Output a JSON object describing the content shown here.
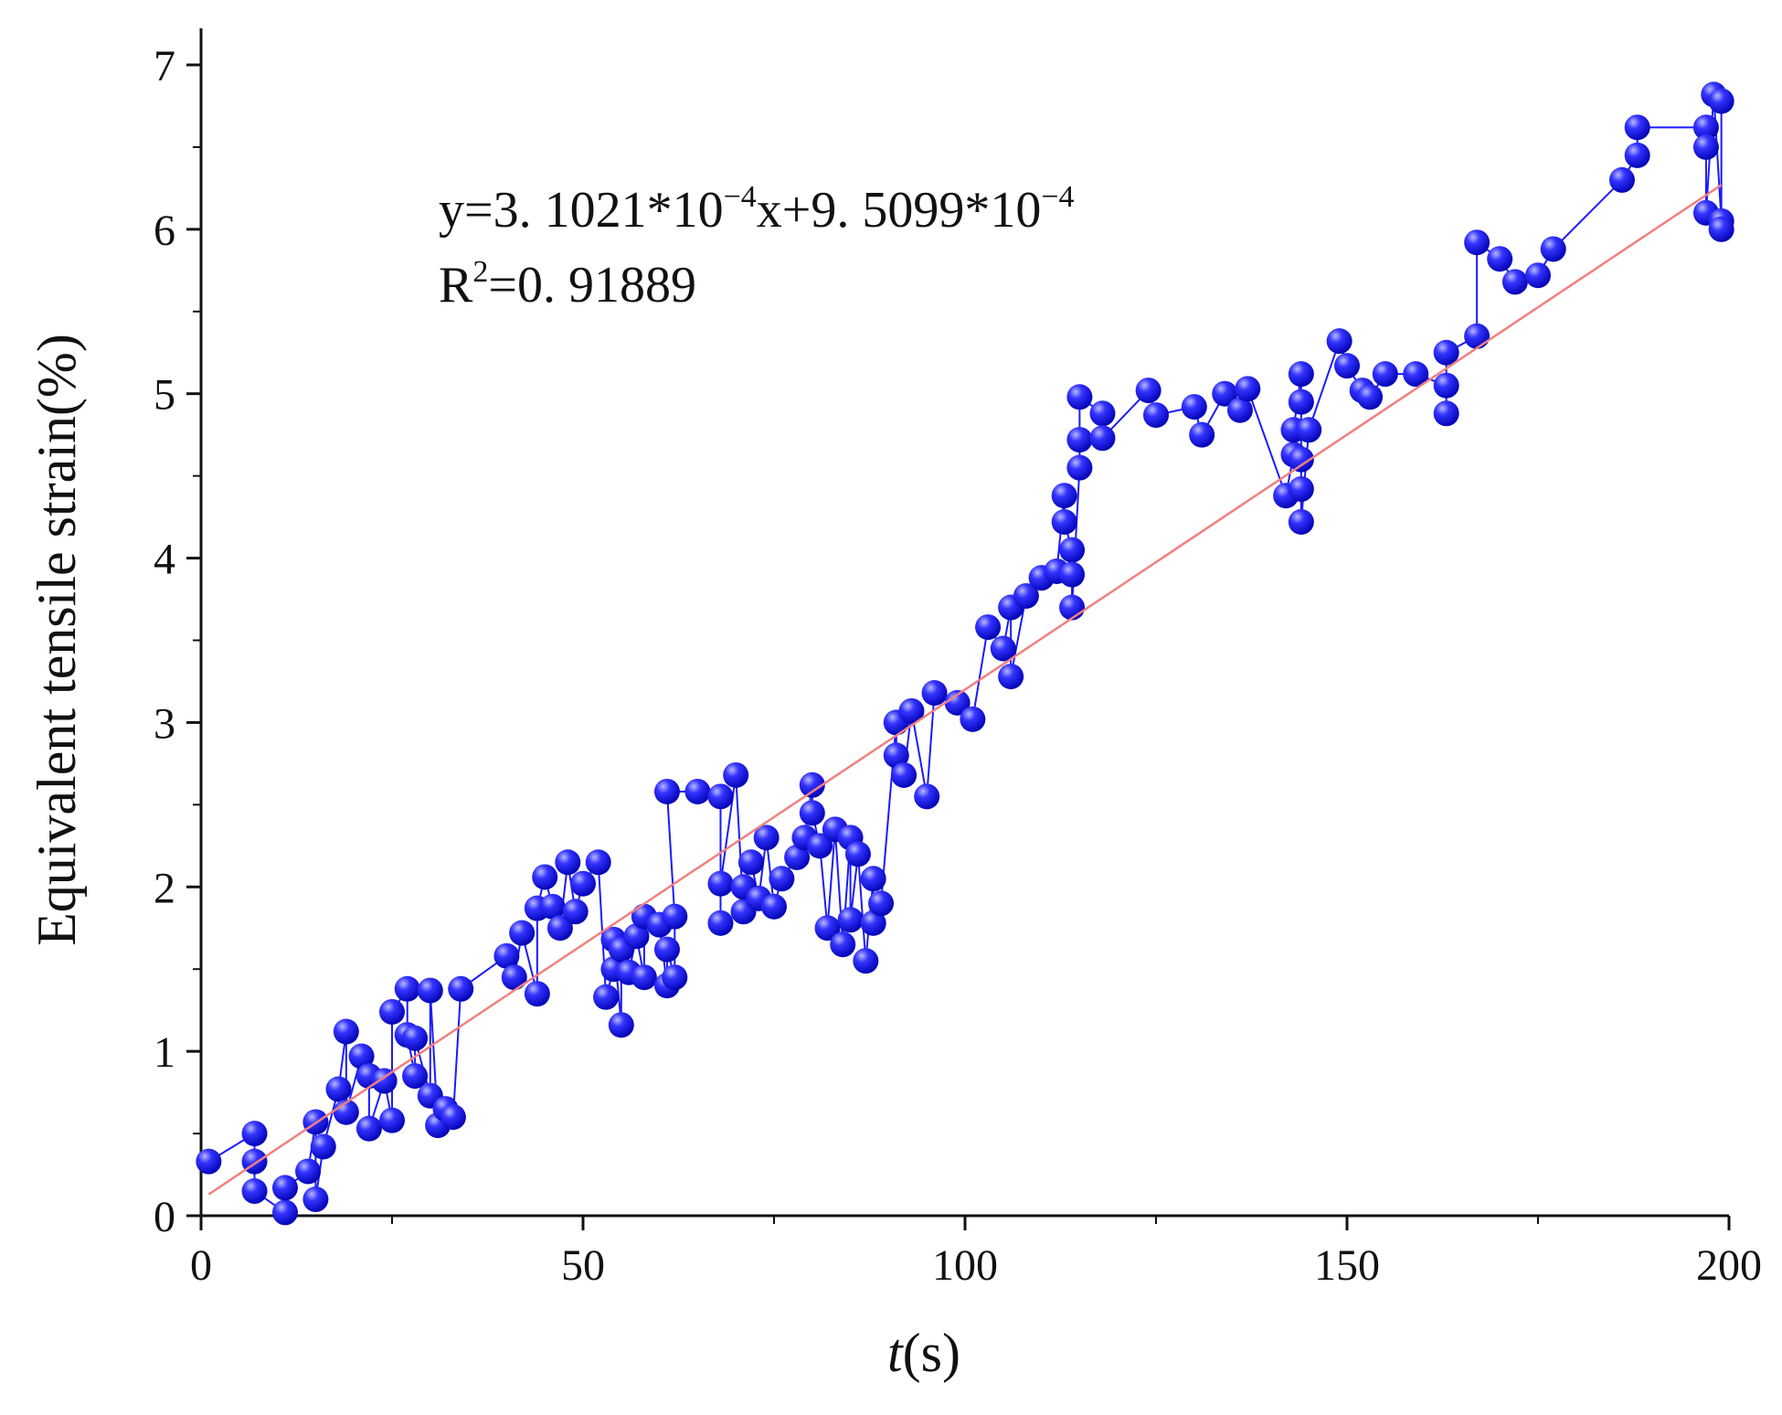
{
  "chart_data": {
    "type": "scatter",
    "xlabel": {
      "symbol": "t",
      "unit": "(s)"
    },
    "ylabel": "Equivalent tensile strain(%)",
    "annotation": {
      "equation": [
        "y=3. 1021*10",
        "−4",
        "x+9. 5099*10",
        "−4"
      ],
      "r2": [
        "R",
        "2",
        "=0. 91889"
      ]
    },
    "xlim": [
      0,
      200
    ],
    "xticks": [
      0,
      50,
      100,
      150,
      200
    ],
    "ylim": [
      0,
      7
    ],
    "yticks": [
      0,
      1,
      2,
      3,
      4,
      5,
      6,
      7
    ],
    "series": [
      {
        "color": "#1a1aff",
        "x": [
          1,
          7,
          7,
          7,
          11,
          11,
          14,
          15,
          15,
          16,
          18,
          19,
          19,
          21,
          22,
          22,
          24,
          25,
          25,
          27,
          27,
          28,
          28,
          30,
          30,
          31,
          32,
          33,
          34,
          40,
          41,
          42,
          44,
          44,
          45,
          46,
          47,
          48,
          49,
          50,
          52,
          53,
          54,
          54,
          55,
          55,
          56,
          57,
          58,
          58,
          60,
          61,
          61,
          62,
          62,
          61,
          65,
          68,
          68,
          68,
          70,
          71,
          71,
          72,
          73,
          74,
          75,
          76,
          78,
          79,
          80,
          80,
          81,
          82,
          83,
          84,
          85,
          85,
          86,
          87,
          88,
          88,
          89,
          91,
          91,
          92,
          93,
          95,
          96,
          99,
          101,
          103,
          105,
          106,
          106,
          108,
          110,
          112,
          113,
          113,
          114,
          114,
          114,
          115,
          115,
          115,
          118,
          118,
          124,
          125,
          130,
          131,
          134,
          136,
          137,
          142,
          143,
          143,
          144,
          144,
          144,
          144,
          144,
          145,
          149,
          150,
          152,
          153,
          155,
          159,
          163,
          163,
          163,
          167,
          167,
          170,
          172,
          175,
          177,
          186,
          188,
          188,
          197,
          197,
          197,
          198,
          199,
          199,
          199
        ],
        "values": [
          0.33,
          0.5,
          0.33,
          0.15,
          0.02,
          0.17,
          0.27,
          0.57,
          0.1,
          0.42,
          0.77,
          1.12,
          0.63,
          0.97,
          0.85,
          0.53,
          0.82,
          0.58,
          1.24,
          1.38,
          1.1,
          0.85,
          1.08,
          0.73,
          1.37,
          0.55,
          0.65,
          0.6,
          1.38,
          1.58,
          1.45,
          1.72,
          1.35,
          1.87,
          2.06,
          1.88,
          1.75,
          2.15,
          1.85,
          2.02,
          2.15,
          1.33,
          1.5,
          1.68,
          1.16,
          1.62,
          1.48,
          1.7,
          1.45,
          1.82,
          1.77,
          1.4,
          1.62,
          1.45,
          1.82,
          2.58,
          2.58,
          2.55,
          1.78,
          2.02,
          2.68,
          1.85,
          2.0,
          2.15,
          1.93,
          2.3,
          1.88,
          2.05,
          2.18,
          2.3,
          2.62,
          2.45,
          2.25,
          1.75,
          2.35,
          1.65,
          2.3,
          1.8,
          2.2,
          1.55,
          2.05,
          1.78,
          1.9,
          3.0,
          2.8,
          2.68,
          3.07,
          2.55,
          3.18,
          3.12,
          3.02,
          3.58,
          3.45,
          3.7,
          3.28,
          3.77,
          3.88,
          3.92,
          4.38,
          4.22,
          4.05,
          3.9,
          3.7,
          4.55,
          4.72,
          4.98,
          4.88,
          4.73,
          5.02,
          4.87,
          4.92,
          4.75,
          5.0,
          4.9,
          5.03,
          4.38,
          4.63,
          4.78,
          5.12,
          4.95,
          4.6,
          4.42,
          4.22,
          4.78,
          5.32,
          5.17,
          5.02,
          4.98,
          5.12,
          5.12,
          5.05,
          4.88,
          5.25,
          5.35,
          5.92,
          5.82,
          5.68,
          5.72,
          5.88,
          6.3,
          6.45,
          6.62,
          6.62,
          6.5,
          6.1,
          6.82,
          6.05,
          6.0,
          6.78
        ]
      }
    ],
    "fit": {
      "color": "#f08080",
      "x": [
        1,
        199
      ],
      "values": [
        0.13,
        6.27
      ]
    }
  }
}
